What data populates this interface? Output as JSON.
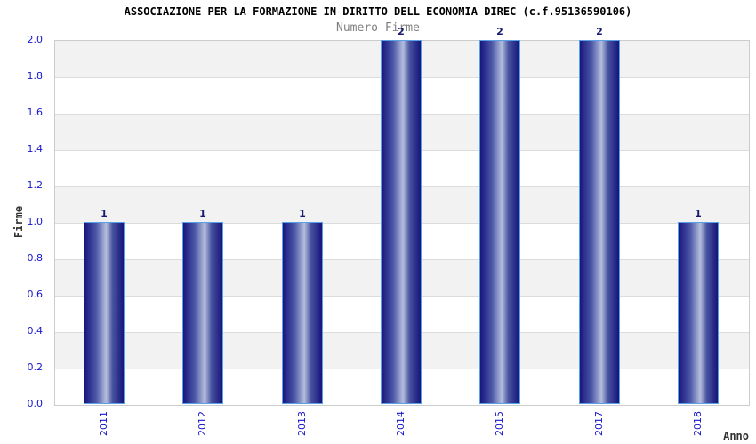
{
  "chart_data": {
    "type": "bar",
    "title": "ASSOCIAZIONE PER LA FORMAZIONE IN DIRITTO DELL ECONOMIA DIREC (c.f.95136590106)",
    "subtitle": "Numero Firme",
    "xlabel": "Anno",
    "ylabel": "Firme",
    "categories": [
      "2011",
      "2012",
      "2013",
      "2014",
      "2015",
      "2017",
      "2018"
    ],
    "values": [
      1,
      1,
      1,
      2,
      2,
      2,
      1
    ],
    "bar_labels": [
      "1",
      "1",
      "1",
      "2",
      "2",
      "2",
      "1"
    ],
    "ylim": [
      0,
      2
    ],
    "yticks": [
      "0.0",
      "0.2",
      "0.4",
      "0.6",
      "0.8",
      "1.0",
      "1.2",
      "1.4",
      "1.6",
      "1.8",
      "2.0"
    ],
    "grid": true,
    "legend": "none",
    "colors": {
      "title": "#000000",
      "subtitle": "#808080",
      "axis_title": "#333333",
      "tick_label": "#1616cc",
      "value_label": "#191970",
      "bar_border": "#58a0e8",
      "bar_gradient": [
        "#17177e",
        "#4d58a8",
        "#b4bedd",
        "#47529f",
        "#15157a"
      ],
      "band_gray": "#f2f2f2",
      "band_white": "#ffffff",
      "gridline": "#dcdcdc",
      "plot_border": "#cccccc"
    }
  }
}
